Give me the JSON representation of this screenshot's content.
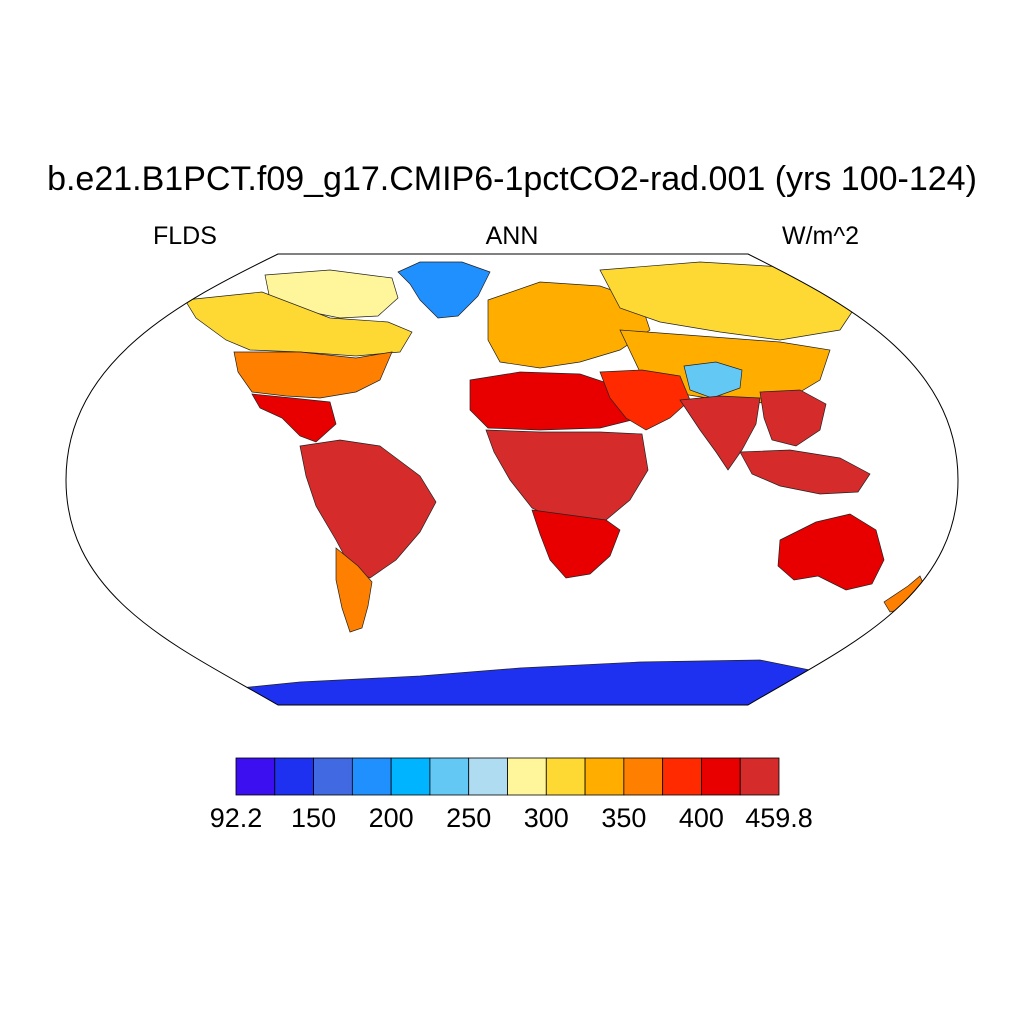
{
  "title": "b.e21.B1PCT.f09_g17.CMIP6-1pctCO2-rad.001 (yrs 100-124)",
  "left_label": "FLDS",
  "center_label": "ANN",
  "right_label": "W/m^2",
  "map": {
    "projection": "robinson",
    "field": "FLDS",
    "ocean_masked": true,
    "regions": [
      {
        "name": "greenland",
        "level": 3
      },
      {
        "name": "canada-arctic",
        "level": 7
      },
      {
        "name": "north-america",
        "level": 8
      },
      {
        "name": "usa",
        "level": 10
      },
      {
        "name": "mexico-central-america",
        "level": 12
      },
      {
        "name": "south-america",
        "level": 14
      },
      {
        "name": "patagonia",
        "level": 10
      },
      {
        "name": "europe",
        "level": 9
      },
      {
        "name": "siberia",
        "level": 8
      },
      {
        "name": "asia",
        "level": 9
      },
      {
        "name": "tibetan-plateau",
        "level": 5
      },
      {
        "name": "north-africa",
        "level": 12
      },
      {
        "name": "central-africa",
        "level": 14
      },
      {
        "name": "southern-africa",
        "level": 12
      },
      {
        "name": "middle-east",
        "level": 11
      },
      {
        "name": "india",
        "level": 13
      },
      {
        "name": "southeast-asia",
        "level": 14
      },
      {
        "name": "indonesia",
        "level": 14
      },
      {
        "name": "australia",
        "level": 12
      },
      {
        "name": "new-zealand",
        "level": 10
      },
      {
        "name": "antarctica",
        "level": 1
      }
    ]
  },
  "colorbar": {
    "colors": [
      "#3b0ff0",
      "#1f31f0",
      "#4169e1",
      "#2090ff",
      "#00b4ff",
      "#64c8f5",
      "#b0dcf2",
      "#fff59a",
      "#ffd933",
      "#ffae00",
      "#ff7f00",
      "#ff2a00",
      "#e80000",
      "#d62b2b"
    ],
    "labels": [
      {
        "text": "92.2",
        "boundary": 0
      },
      {
        "text": "150",
        "boundary": 2
      },
      {
        "text": "200",
        "boundary": 4
      },
      {
        "text": "250",
        "boundary": 6
      },
      {
        "text": "300",
        "boundary": 8
      },
      {
        "text": "350",
        "boundary": 10
      },
      {
        "text": "400",
        "boundary": 12
      },
      {
        "text": "459.8",
        "boundary": 14
      }
    ]
  }
}
